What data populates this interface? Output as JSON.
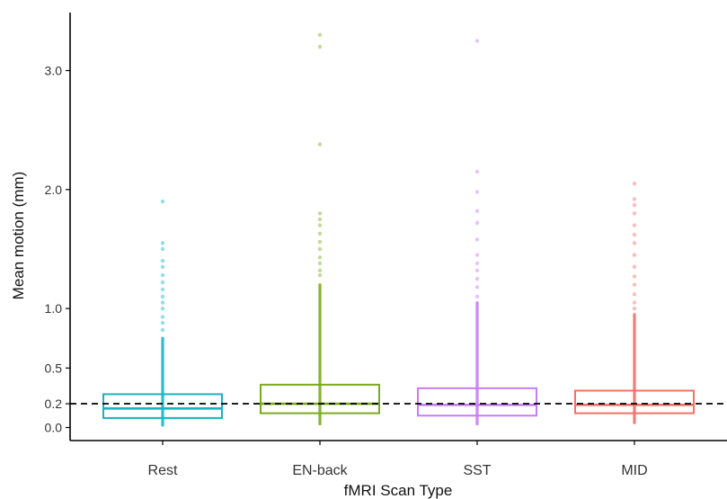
{
  "chart_data": {
    "type": "box",
    "title": "",
    "xlabel": "fMRI Scan Type",
    "ylabel": "Mean motion (mm)",
    "ylim": [
      -0.05,
      3.45
    ],
    "yticks": [
      0.0,
      0.2,
      0.5,
      1.0,
      2.0,
      3.0
    ],
    "ytick_labels": [
      "0.0",
      "0.2",
      "0.5",
      "1.0",
      "2.0",
      "3.0"
    ],
    "reference_line": {
      "y": 0.2,
      "style": "dashed",
      "color": "#000000"
    },
    "grid": false,
    "legend": "none",
    "categories": [
      "Rest",
      "EN-back",
      "SST",
      "MID"
    ],
    "series": [
      {
        "name": "Rest",
        "color": "#1ab3c1",
        "q1": 0.08,
        "median": 0.16,
        "q3": 0.28,
        "whisker_low": 0.02,
        "dense_top": 0.75,
        "outliers": [
          0.82,
          0.88,
          0.93,
          1.0,
          1.05,
          1.1,
          1.16,
          1.22,
          1.28,
          1.35,
          1.4,
          1.5,
          1.55,
          1.9
        ]
      },
      {
        "name": "EN-back",
        "color": "#7aab1e",
        "q1": 0.12,
        "median": 0.2,
        "q3": 0.36,
        "whisker_low": 0.03,
        "dense_top": 1.2,
        "outliers": [
          1.28,
          1.32,
          1.38,
          1.43,
          1.5,
          1.56,
          1.63,
          1.7,
          1.75,
          1.8,
          2.38,
          3.2,
          3.3
        ]
      },
      {
        "name": "SST",
        "color": "#c77cf2",
        "q1": 0.1,
        "median": 0.19,
        "q3": 0.33,
        "whisker_low": 0.03,
        "dense_top": 1.05,
        "outliers": [
          1.1,
          1.18,
          1.25,
          1.32,
          1.38,
          1.45,
          1.58,
          1.72,
          1.82,
          1.98,
          2.15,
          3.25
        ]
      },
      {
        "name": "MID",
        "color": "#f0706a",
        "q1": 0.12,
        "median": 0.19,
        "q3": 0.31,
        "whisker_low": 0.04,
        "dense_top": 0.95,
        "outliers": [
          1.0,
          1.05,
          1.12,
          1.2,
          1.27,
          1.35,
          1.45,
          1.55,
          1.62,
          1.7,
          1.8,
          1.87,
          1.92,
          2.05
        ]
      }
    ]
  }
}
